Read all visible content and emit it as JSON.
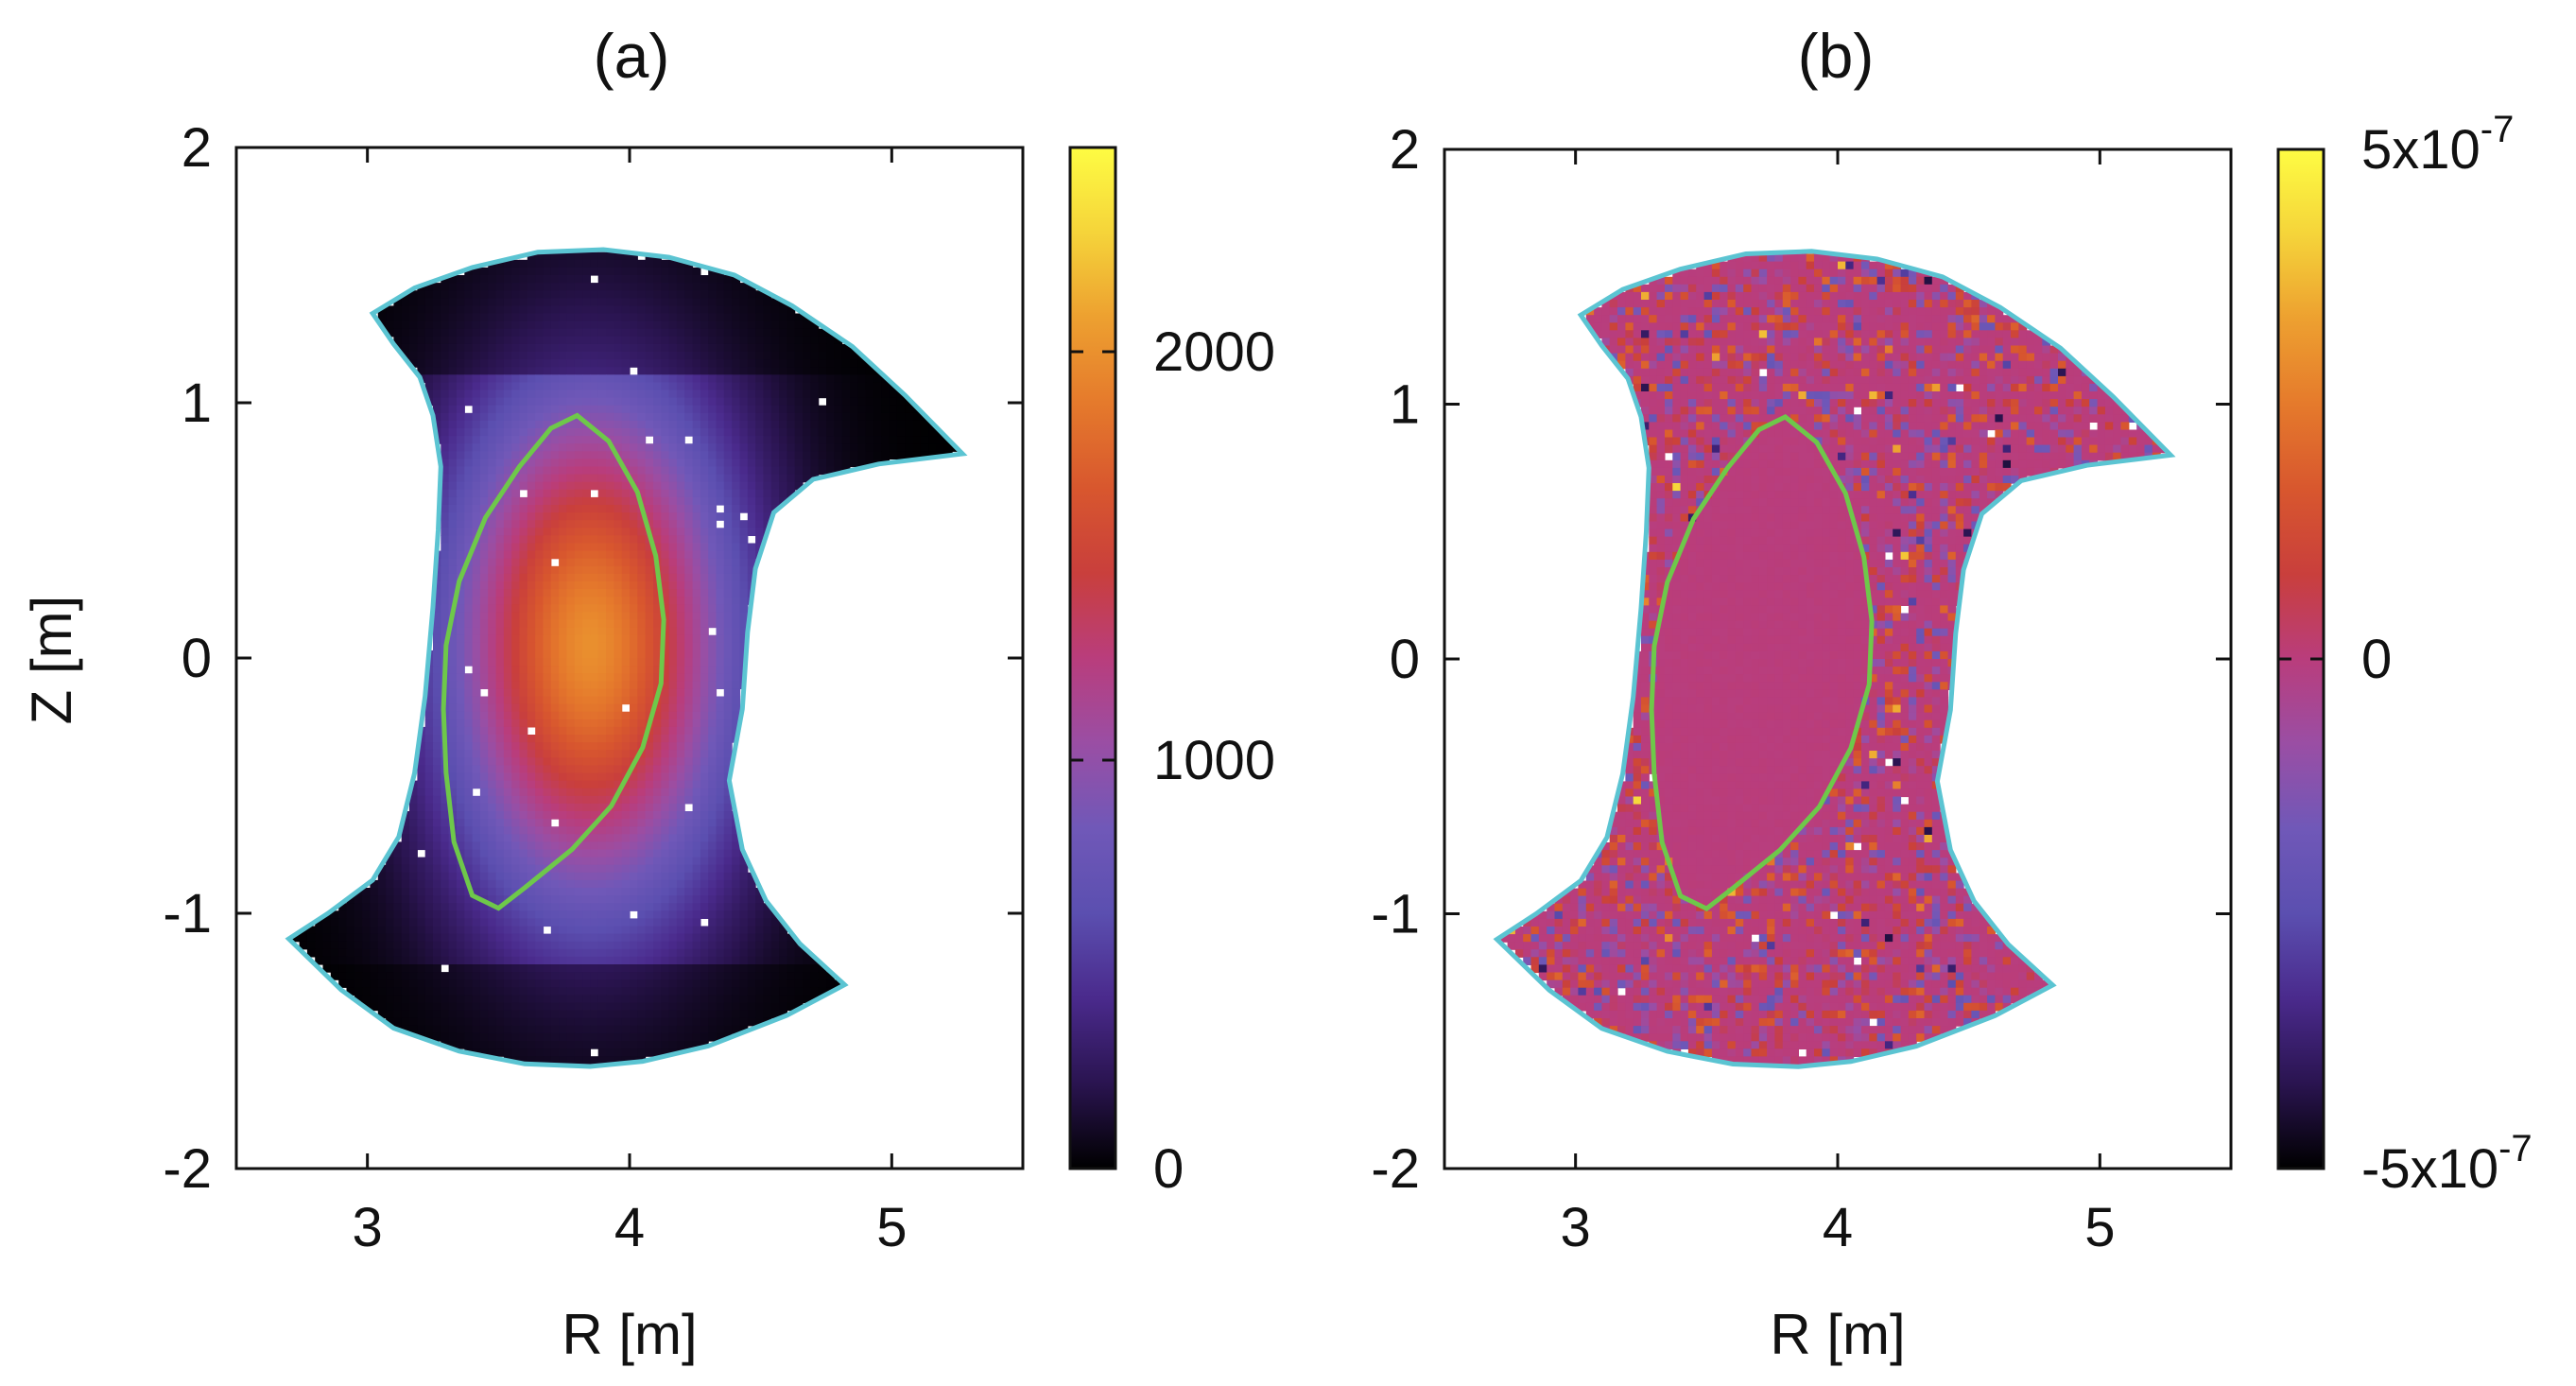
{
  "chart_data": [
    {
      "panel": "a",
      "type": "heatmap",
      "title": "(a)",
      "xlabel": "R [m]",
      "ylabel": "Z [m]",
      "xlim": [
        2.5,
        5.5
      ],
      "ylim": [
        -2,
        2
      ],
      "x_ticks": [
        3,
        4,
        5
      ],
      "y_ticks": [
        -2,
        -1,
        0,
        1,
        2
      ],
      "x_tick_labels": [
        "3",
        "4",
        "5"
      ],
      "y_tick_labels": [
        "-2",
        "-1",
        "0",
        "1",
        "2"
      ],
      "colorbar": {
        "range": [
          0,
          2500
        ],
        "ticks": [
          0,
          1000,
          2000
        ],
        "tick_labels": [
          "0",
          "1000",
          "2000"
        ]
      },
      "field": {
        "description_peak_value": 2000,
        "peak_location": [
          3.85,
          0.05
        ],
        "edge_value": 0
      },
      "boundary": {
        "color": "#5bc4d2",
        "points": [
          [
            3.02,
            1.35
          ],
          [
            3.18,
            1.45
          ],
          [
            3.4,
            1.53
          ],
          [
            3.65,
            1.59
          ],
          [
            3.9,
            1.6
          ],
          [
            4.15,
            1.57
          ],
          [
            4.4,
            1.5
          ],
          [
            4.62,
            1.38
          ],
          [
            4.85,
            1.22
          ],
          [
            5.05,
            1.03
          ],
          [
            5.27,
            0.8
          ],
          [
            4.95,
            0.76
          ],
          [
            4.7,
            0.7
          ],
          [
            4.55,
            0.57
          ],
          [
            4.48,
            0.35
          ],
          [
            4.45,
            0.1
          ],
          [
            4.43,
            -0.2
          ],
          [
            4.38,
            -0.48
          ],
          [
            4.43,
            -0.75
          ],
          [
            4.52,
            -0.95
          ],
          [
            4.65,
            -1.12
          ],
          [
            4.82,
            -1.28
          ],
          [
            4.6,
            -1.4
          ],
          [
            4.3,
            -1.52
          ],
          [
            4.05,
            -1.58
          ],
          [
            3.85,
            -1.6
          ],
          [
            3.6,
            -1.59
          ],
          [
            3.35,
            -1.54
          ],
          [
            3.1,
            -1.45
          ],
          [
            2.9,
            -1.3
          ],
          [
            2.7,
            -1.1
          ],
          [
            2.85,
            -1.0
          ],
          [
            3.02,
            -0.87
          ],
          [
            3.12,
            -0.7
          ],
          [
            3.18,
            -0.45
          ],
          [
            3.22,
            -0.15
          ],
          [
            3.25,
            0.2
          ],
          [
            3.27,
            0.5
          ],
          [
            3.28,
            0.75
          ],
          [
            3.25,
            0.95
          ],
          [
            3.2,
            1.1
          ],
          [
            3.1,
            1.23
          ],
          [
            3.02,
            1.35
          ]
        ]
      },
      "separatrix": {
        "color": "#6ec84a",
        "points": [
          [
            3.8,
            0.95
          ],
          [
            3.92,
            0.85
          ],
          [
            4.03,
            0.65
          ],
          [
            4.1,
            0.4
          ],
          [
            4.13,
            0.15
          ],
          [
            4.12,
            -0.1
          ],
          [
            4.05,
            -0.35
          ],
          [
            3.93,
            -0.58
          ],
          [
            3.78,
            -0.75
          ],
          [
            3.6,
            -0.9
          ],
          [
            3.5,
            -0.98
          ],
          [
            3.4,
            -0.93
          ],
          [
            3.33,
            -0.72
          ],
          [
            3.3,
            -0.45
          ],
          [
            3.29,
            -0.2
          ],
          [
            3.3,
            0.05
          ],
          [
            3.35,
            0.3
          ],
          [
            3.45,
            0.55
          ],
          [
            3.58,
            0.75
          ],
          [
            3.7,
            0.9
          ],
          [
            3.8,
            0.95
          ]
        ]
      }
    },
    {
      "panel": "b",
      "type": "heatmap",
      "title": "(b)",
      "xlabel": "R [m]",
      "ylabel": "",
      "xlim": [
        2.5,
        5.5
      ],
      "ylim": [
        -2,
        2
      ],
      "x_ticks": [
        3,
        4,
        5
      ],
      "y_ticks": [
        -2,
        -1,
        0,
        1,
        2
      ],
      "x_tick_labels": [
        "3",
        "4",
        "5"
      ],
      "y_tick_labels": [
        "-2",
        "-1",
        "0",
        "1",
        "2"
      ],
      "colorbar": {
        "range": [
          -5e-07,
          5e-07
        ],
        "ticks": [
          -5e-07,
          0,
          5e-07
        ],
        "tick_labels": [
          {
            "mantissa": "-5x10",
            "exp": "-7"
          },
          {
            "mantissa": "0",
            "exp": ""
          },
          {
            "mantissa": "5x10",
            "exp": "-7"
          }
        ]
      },
      "field": {
        "description_core_value": 0,
        "noise_amplitude": 2e-07
      },
      "boundary_ref": "same_as_a",
      "separatrix_ref": "same_as_a"
    }
  ],
  "colormap": [
    "#000000",
    "#2a1450",
    "#4a2a8c",
    "#5b4fb0",
    "#7058b8",
    "#9a4ea4",
    "#b93d7c",
    "#c93f3c",
    "#d8572e",
    "#e57a2c",
    "#eda030",
    "#f5d43a",
    "#fefc43"
  ]
}
